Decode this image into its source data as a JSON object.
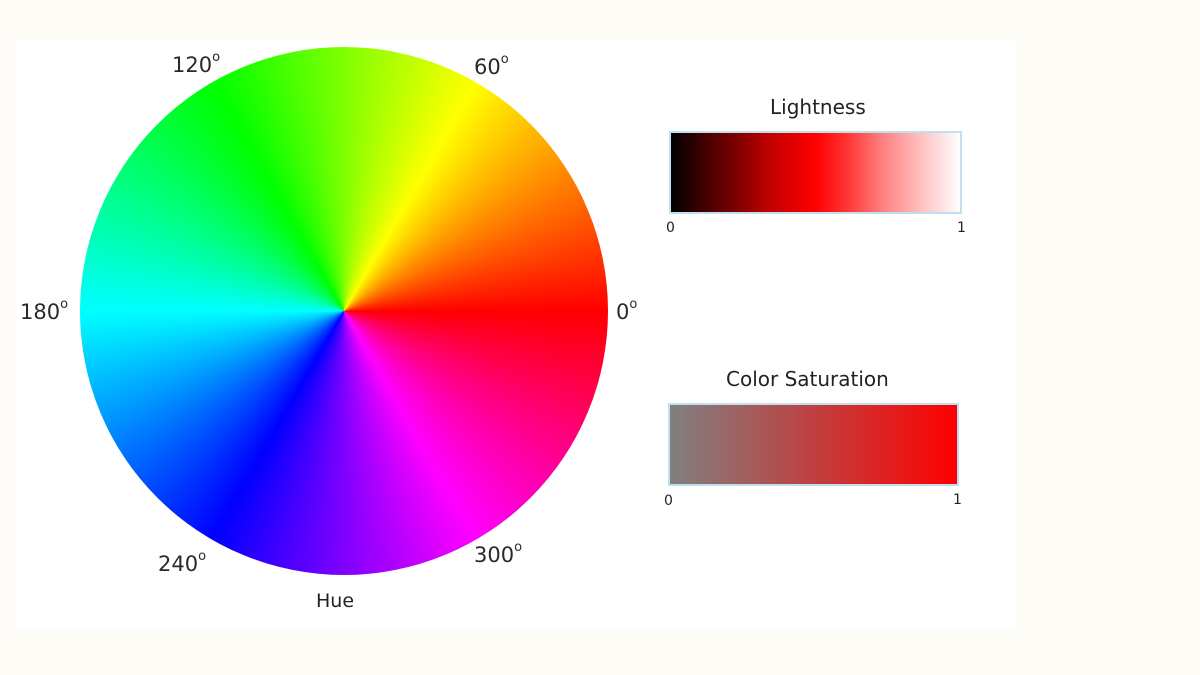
{
  "hue_wheel": {
    "angle_labels": {
      "deg0": "0",
      "deg60": "60",
      "deg120": "120",
      "deg180": "180",
      "deg240": "240",
      "deg300": "300"
    },
    "degree_mark": "o",
    "label": "Hue"
  },
  "lightness_bar": {
    "title": "Lightness",
    "min_label": "0",
    "max_label": "1"
  },
  "saturation_bar": {
    "title": "Color Saturation",
    "min_label": "0",
    "max_label": "1"
  },
  "colors": {
    "red": "#ff0000",
    "yellow": "#ffff00",
    "green": "#00ff00",
    "cyan": "#00ffff",
    "blue": "#0000ff",
    "magenta": "#ff00ff",
    "gray": "#808080",
    "black": "#000000",
    "white": "#ffffff"
  }
}
